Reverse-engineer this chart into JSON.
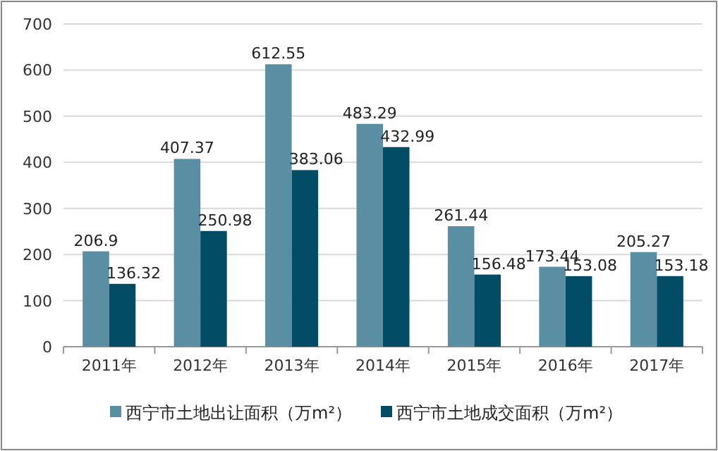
{
  "chart_data": {
    "type": "bar",
    "categories": [
      "2011年",
      "2012年",
      "2013年",
      "2014年",
      "2015年",
      "2016年",
      "2017年"
    ],
    "series": [
      {
        "name": "西宁市土地出让面积（万m²）",
        "color": "#5a8fa3",
        "values": [
          206.9,
          407.37,
          612.55,
          483.29,
          261.44,
          173.44,
          205.27
        ]
      },
      {
        "name": "西宁市土地成交面积（万m²）",
        "color": "#034c66",
        "values": [
          136.32,
          250.98,
          383.06,
          432.99,
          156.48,
          153.08,
          153.18
        ]
      }
    ],
    "ylim": [
      0,
      700
    ],
    "yticks": [
      0,
      100,
      200,
      300,
      400,
      500,
      600,
      700
    ],
    "grid": "y",
    "legend": "bottom",
    "data_labels": true
  }
}
